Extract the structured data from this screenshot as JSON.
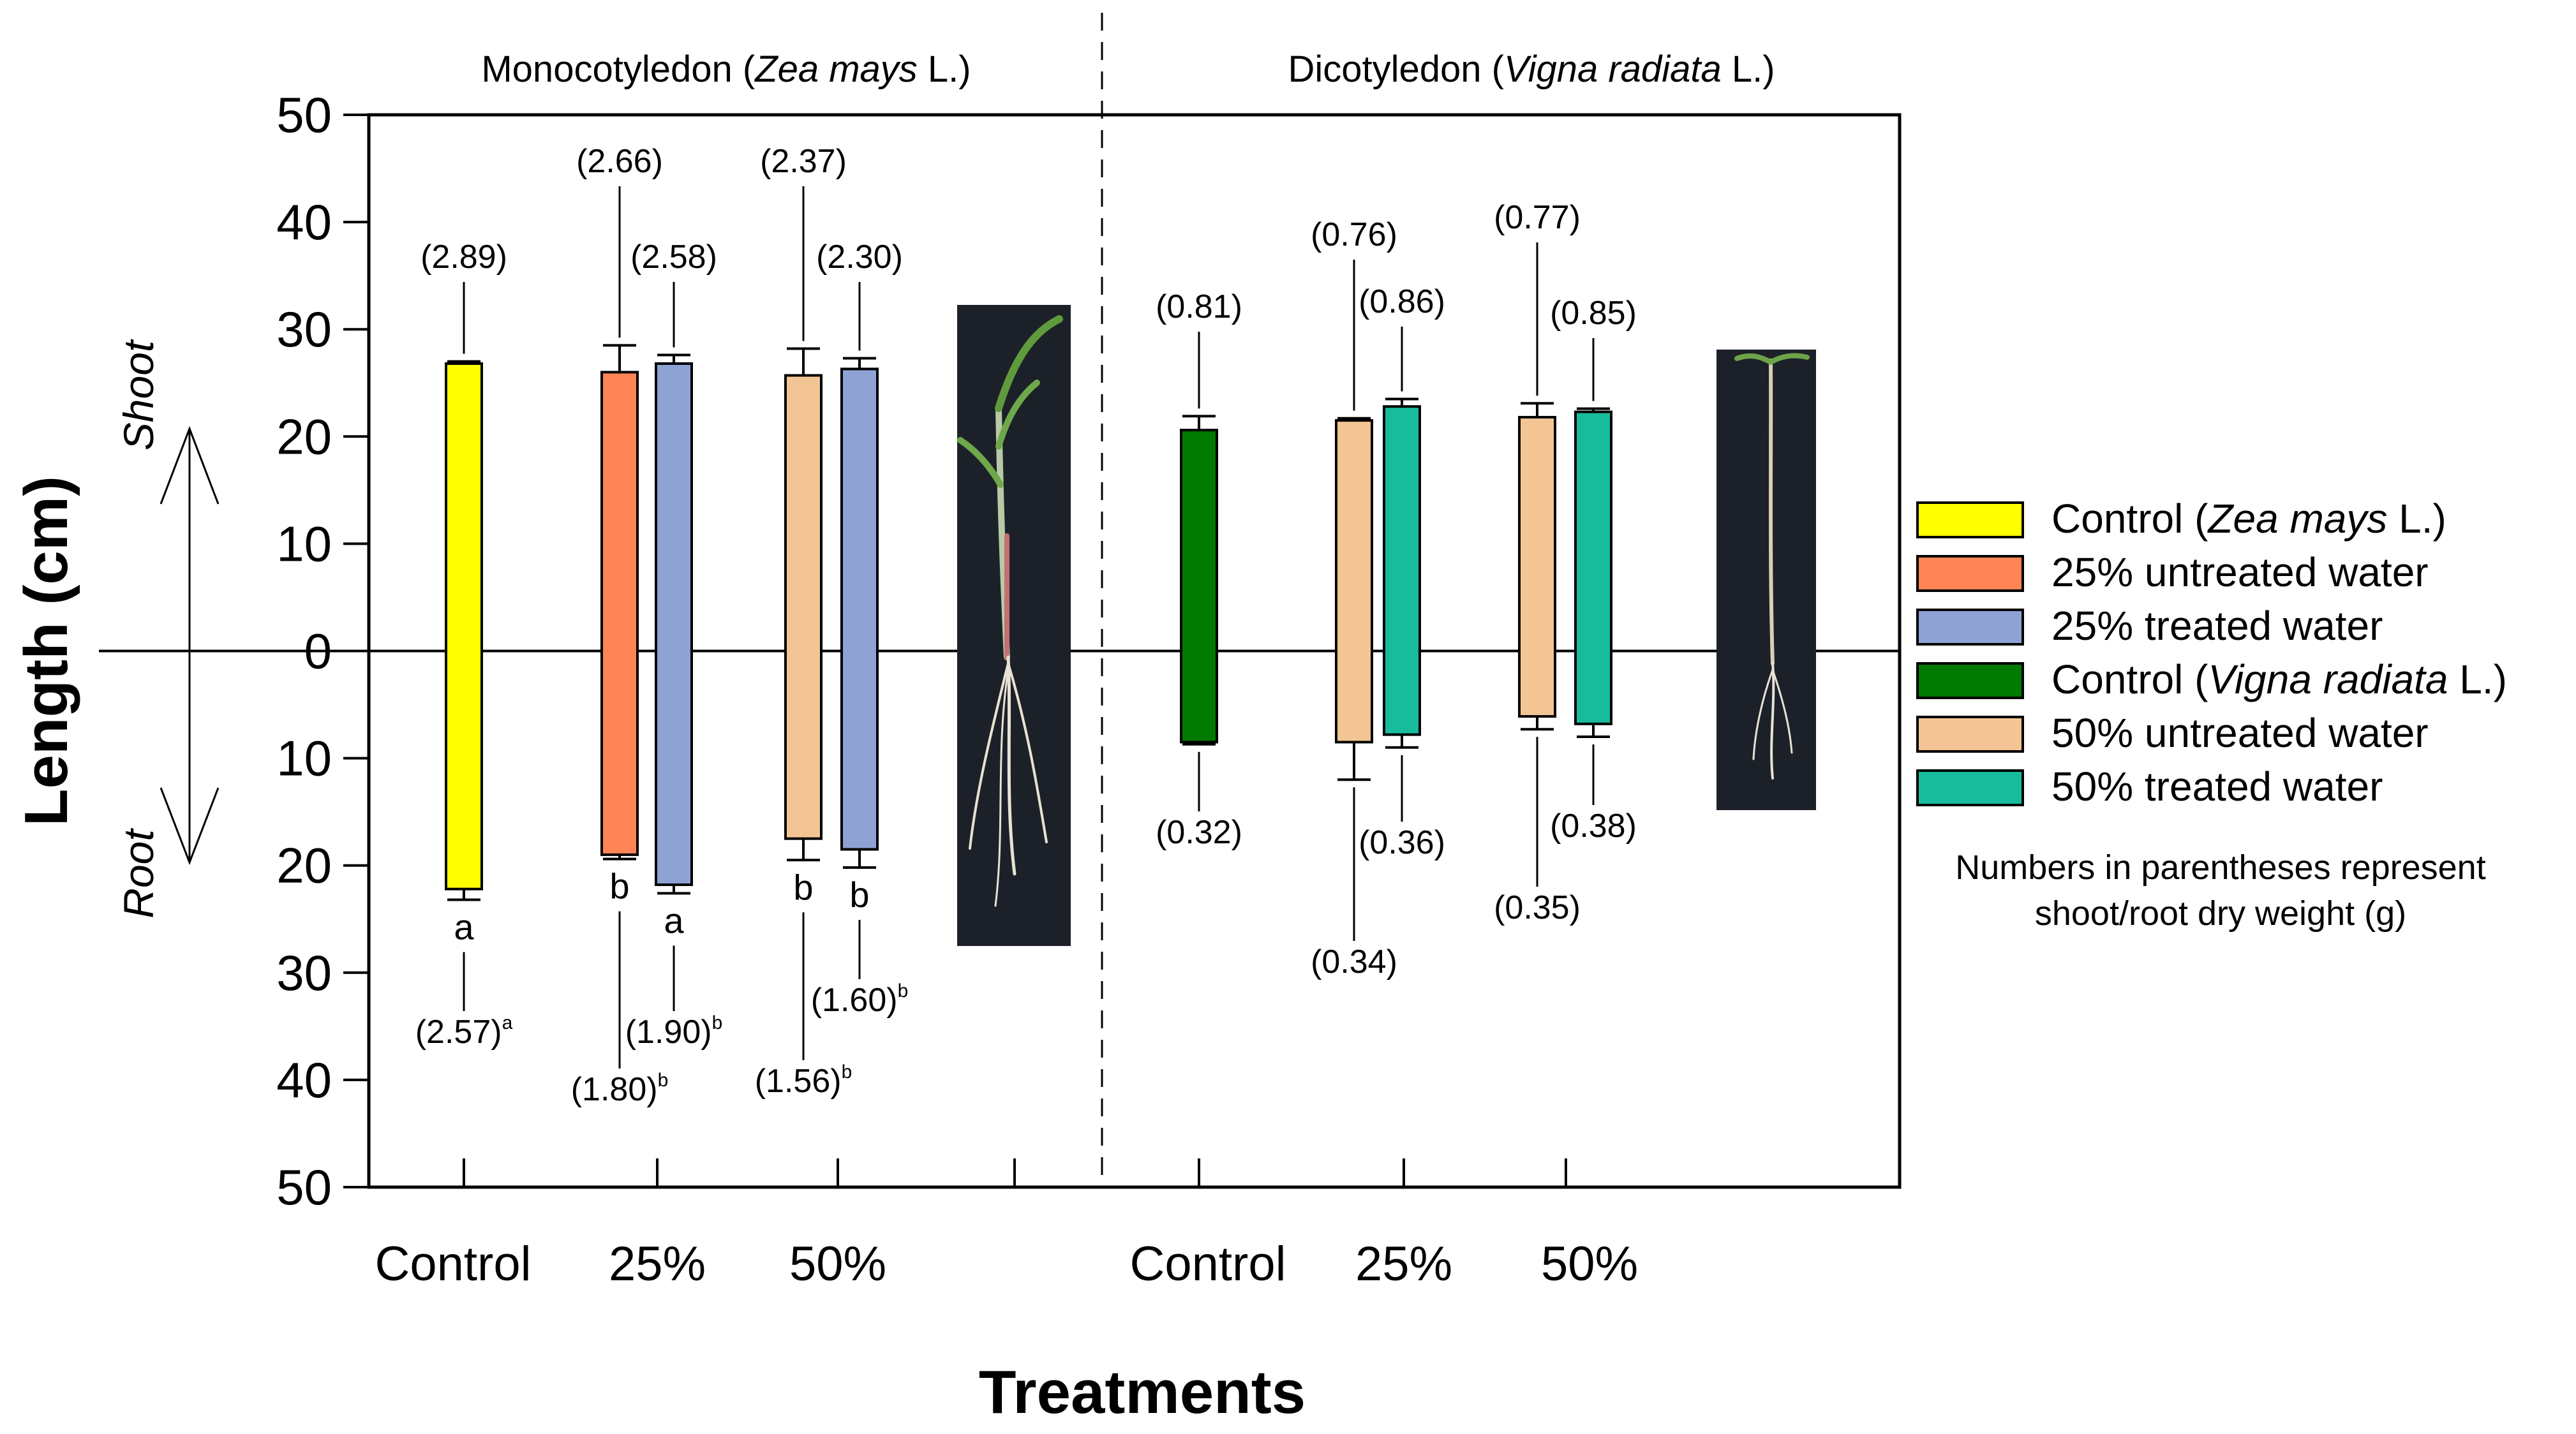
{
  "chart_data": {
    "type": "bar",
    "ylabel": "Length (cm)",
    "xlabel": "Treatments",
    "ylim": [
      -50,
      50
    ],
    "ytick_labels": [
      "50",
      "40",
      "30",
      "20",
      "10",
      "0",
      "10",
      "20",
      "30",
      "40",
      "50"
    ],
    "yticks": [
      50,
      40,
      30,
      20,
      10,
      0,
      -10,
      -20,
      -30,
      -40,
      -50
    ],
    "shoot_label": "Shoot",
    "root_label": "Root",
    "note": [
      "Numbers in parentheses represent",
      "shoot/root dry weight (g)"
    ],
    "panels": [
      {
        "title": {
          "pre": "Monocotyledon (",
          "species": "Zea mays",
          "post": " L.)"
        },
        "categories": [
          {
            "label": "Control",
            "bars": [
              {
                "series": "Control (Zea mays L.)",
                "shoot": 26.8,
                "shoot_err": 0.2,
                "root": 22.2,
                "root_err": 1.0,
                "shoot_weight": "(2.89)",
                "root_weight": "(2.57)",
                "root_weight_sup": "a",
                "root_sig": "a"
              }
            ]
          },
          {
            "label": "25%",
            "bars": [
              {
                "series": "25% untreated water",
                "shoot": 26.0,
                "shoot_err": 2.5,
                "root": 19.0,
                "root_err": 0.4,
                "shoot_weight": "(2.66)",
                "root_weight": "(1.80)",
                "root_weight_sup": "b",
                "root_sig": "b"
              },
              {
                "series": "25% treated water",
                "shoot": 26.8,
                "shoot_err": 0.8,
                "root": 21.8,
                "root_err": 0.8,
                "shoot_weight": "(2.58)",
                "root_weight": "(1.90)",
                "root_weight_sup": "b",
                "root_sig": "a"
              }
            ]
          },
          {
            "label": "50%",
            "bars": [
              {
                "series": "50% untreated water",
                "shoot": 25.7,
                "shoot_err": 2.5,
                "root": 17.5,
                "root_err": 2.0,
                "shoot_weight": "(2.37)",
                "root_weight": "(1.56)",
                "root_weight_sup": "b",
                "root_sig": "b"
              },
              {
                "series": "25% treated water",
                "shoot": 26.3,
                "shoot_err": 1.0,
                "root": 18.5,
                "root_err": 1.7,
                "shoot_weight": "(2.30)",
                "root_weight": "(1.60)",
                "root_weight_sup": "b",
                "root_sig": "b"
              }
            ]
          }
        ]
      },
      {
        "title": {
          "pre": "Dicotyledon (",
          "species": "Vigna radiata",
          "post": " L.)"
        },
        "categories": [
          {
            "label": "Control",
            "bars": [
              {
                "series": "Control (Vigna radiata L.)",
                "shoot": 20.6,
                "shoot_err": 1.3,
                "root": 8.5,
                "root_err": 0.2,
                "shoot_weight": "(0.81)",
                "root_weight": "(0.32)"
              }
            ]
          },
          {
            "label": "25%",
            "bars": [
              {
                "series": "50% untreated water",
                "shoot": 21.5,
                "shoot_err": 0.2,
                "root": 8.5,
                "root_err": 3.5,
                "shoot_weight": "(0.76)",
                "root_weight": "(0.34)"
              },
              {
                "series": "50% treated water",
                "shoot": 22.8,
                "shoot_err": 0.7,
                "root": 7.8,
                "root_err": 1.2,
                "shoot_weight": "(0.86)",
                "root_weight": "(0.36)"
              }
            ]
          },
          {
            "label": "50%",
            "bars": [
              {
                "series": "50% untreated water",
                "shoot": 21.8,
                "shoot_err": 1.3,
                "root": 6.1,
                "root_err": 1.2,
                "shoot_weight": "(0.77)",
                "root_weight": "(0.35)"
              },
              {
                "series": "50% treated water",
                "shoot": 22.3,
                "shoot_err": 0.3,
                "root": 6.8,
                "root_err": 1.2,
                "shoot_weight": "(0.85)",
                "root_weight": "(0.38)"
              }
            ]
          }
        ]
      }
    ],
    "legend": {
      "placement": "right",
      "entries": [
        {
          "pre": "Control (",
          "species": "Zea mays",
          "post": " L.)",
          "color": "#FFFF00"
        },
        {
          "pre": "25% untreated water",
          "species": "",
          "post": "",
          "color": "#FF8456"
        },
        {
          "pre": "25% treated water",
          "species": "",
          "post": "",
          "color": "#8EA2D4"
        },
        {
          "pre": "Control (",
          "species": "Vigna radiata",
          "post": " L.)",
          "color": "#007A00"
        },
        {
          "pre": "50% untreated water",
          "species": "",
          "post": "",
          "color": "#F3C594"
        },
        {
          "pre": "50% treated water",
          "species": "",
          "post": "",
          "color": "#18BC9C"
        }
      ]
    },
    "colors": {
      "Control (Zea mays L.)": "#FFFF00",
      "25% untreated water": "#FF8456",
      "25% treated water": "#8EA2D4",
      "Control (Vigna radiata L.)": "#007A00",
      "50% untreated water": "#F3C594",
      "50% treated water": "#18BC9C"
    },
    "photos": [
      "Zea mays seedling photo",
      "Vigna radiata seedling photo"
    ]
  }
}
